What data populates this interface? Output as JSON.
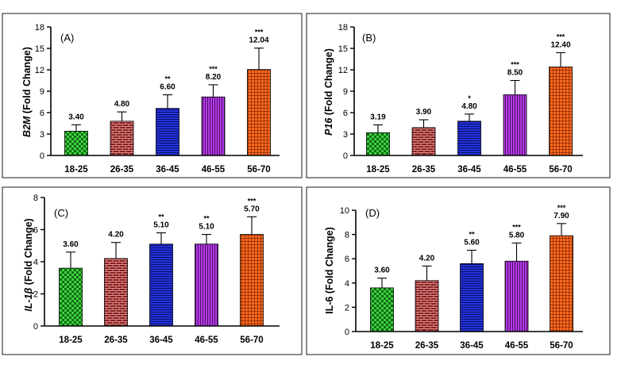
{
  "chart_data": [
    {
      "type": "bar",
      "panel": "(A)",
      "gene": "B2M",
      "ylabel_rest": " (Fold Change)",
      "categories": [
        "18-25",
        "26-35",
        "36-45",
        "46-55",
        "56-70"
      ],
      "values": [
        3.4,
        4.8,
        6.6,
        8.2,
        12.04
      ],
      "value_labels": [
        "3.40",
        "4.80",
        "6.60",
        "8.20",
        "12.04"
      ],
      "errors": [
        0.9,
        1.3,
        1.9,
        1.7,
        3.0
      ],
      "significance": [
        "",
        "",
        "**",
        "***",
        "***"
      ],
      "ylim": [
        0,
        18
      ],
      "yticks": [
        0,
        3,
        6,
        9,
        12,
        15,
        18
      ],
      "ylabel_italic_gene": true
    },
    {
      "type": "bar",
      "panel": "(B)",
      "gene": "P16",
      "ylabel_rest": " (Fold Change)",
      "categories": [
        "18-25",
        "26-35",
        "36-45",
        "46-55",
        "56-70"
      ],
      "values": [
        3.19,
        3.9,
        4.8,
        8.5,
        12.4
      ],
      "value_labels": [
        "3.19",
        "3.90",
        "4.80",
        "8.50",
        "12.40"
      ],
      "errors": [
        1.1,
        1.1,
        1.0,
        2.0,
        2.0
      ],
      "significance": [
        "",
        "",
        "*",
        "***",
        "***"
      ],
      "ylim": [
        0,
        18
      ],
      "yticks": [
        0,
        3,
        6,
        9,
        12,
        15,
        18
      ],
      "ylabel_italic_gene": true
    },
    {
      "type": "bar",
      "panel": "(C)",
      "gene": "IL-1β",
      "ylabel_rest": " (Fold Change)",
      "categories": [
        "18-25",
        "26-35",
        "36-45",
        "46-55",
        "56-70"
      ],
      "values": [
        3.6,
        4.2,
        5.1,
        5.1,
        5.7
      ],
      "value_labels": [
        "3.60",
        "4.20",
        "5.10",
        "5.10",
        "5.70"
      ],
      "errors": [
        1.0,
        1.0,
        0.7,
        0.6,
        1.1
      ],
      "significance": [
        "",
        "",
        "**",
        "**",
        "***"
      ],
      "ylim": [
        0,
        8
      ],
      "yticks": [
        0,
        2,
        4,
        6,
        8
      ],
      "ylabel_italic_gene": true
    },
    {
      "type": "bar",
      "panel": "(D)",
      "gene": "IL-6",
      "ylabel_rest": " (Fold Change)",
      "categories": [
        "18-25",
        "26-35",
        "36-45",
        "46-55",
        "56-70"
      ],
      "values": [
        3.6,
        4.2,
        5.6,
        5.8,
        7.9
      ],
      "value_labels": [
        "3.60",
        "4.20",
        "5.60",
        "5.80",
        "7.90"
      ],
      "errors": [
        0.8,
        1.2,
        1.1,
        1.5,
        1.0
      ],
      "significance": [
        "",
        "",
        "**",
        "***",
        "***"
      ],
      "ylim": [
        0,
        10
      ],
      "yticks": [
        0,
        2,
        4,
        6,
        8,
        10
      ],
      "ylabel_italic_gene": false
    }
  ],
  "bar_styles": [
    {
      "fill": "#3fd13f",
      "pattern": "checker",
      "ink": "#0e6b14"
    },
    {
      "fill": "#8a1f1f",
      "pattern": "brick",
      "ink": "#e9a7a7"
    },
    {
      "fill": "#2233dd",
      "pattern": "hlines",
      "ink": "#0a0a55"
    },
    {
      "fill": "#b63ae6",
      "pattern": "vlines",
      "ink": "#3c0b57"
    },
    {
      "fill": "#ff6a1f",
      "pattern": "grid",
      "ink": "#7a2100"
    }
  ]
}
